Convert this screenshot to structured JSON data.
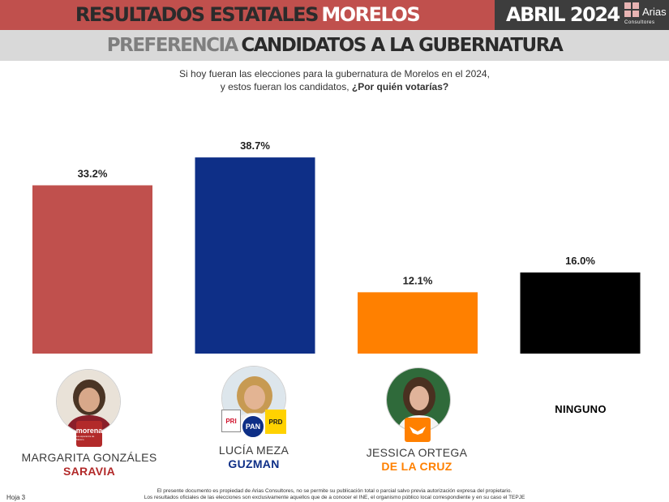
{
  "header": {
    "title_part1": "RESULTADOS ESTATALES",
    "title_part2": "MORELOS",
    "date": "ABRIL 2024",
    "logo": {
      "name": "Arias",
      "sub": "Consultores"
    },
    "subtitle_part1": "PREFERENCIA",
    "subtitle_part2": "CANDIDATOS A LA GUBERNATURA"
  },
  "question": {
    "line1": "Si hoy fueran las elecciones para la gubernatura de Morelos en el 2024,",
    "line2": "y estos fueran los candidatos,",
    "line2_bold": "¿Por quién votarías?"
  },
  "chart_data": {
    "type": "bar",
    "categories": [
      "MARGARITA GONZÁLES SARAVIA",
      "LUCÍA MEZA GUZMAN",
      "JESSICA ORTEGA DE LA CRUZ",
      "NINGUNO"
    ],
    "values": [
      33.2,
      38.7,
      12.1,
      16.0
    ],
    "value_labels": [
      "33.2%",
      "38.7%",
      "12.1%",
      "16.0%"
    ],
    "colors": [
      "#c0504d",
      "#0e2f87",
      "#ff8000",
      "#000000"
    ],
    "ylim": [
      0,
      40
    ],
    "grid": false,
    "legend": "none"
  },
  "candidates": [
    {
      "first": "MARGARITA GONZÁLES",
      "last": "SARAVIA",
      "last_color": "#b22a2a",
      "photo_icon": "candidate-portrait-icon",
      "parties": [
        "morena"
      ]
    },
    {
      "first": "LUCÍA MEZA",
      "last": "GUZMAN",
      "last_color": "#0e2f87",
      "photo_icon": "candidate-portrait-icon",
      "parties": [
        "PRI",
        "PAN",
        "PRD"
      ]
    },
    {
      "first": "JESSICA ORTEGA",
      "last": "DE LA CRUZ",
      "last_color": "#ff8000",
      "photo_icon": "candidate-portrait-icon",
      "parties": [
        "movimiento-ciudadano"
      ]
    },
    {
      "first": "NINGUNO",
      "last": "",
      "last_color": "#000000"
    }
  ],
  "parties": {
    "morena": {
      "label": "morena",
      "sub": "La esperanza de México",
      "color": "#b22a2a"
    },
    "pri": {
      "label": "PRI",
      "color": "#ffffff"
    },
    "pan": {
      "label": "PAN",
      "color": "#0e2f87"
    },
    "prd": {
      "label": "PRD",
      "color": "#ffd200"
    },
    "mc": {
      "label": "MOVIMIENTO CIUDADANO",
      "color": "#ff8000"
    }
  },
  "footer": {
    "page": "Hoja 3",
    "line1": "El presente documento es propiedad de Arias Consultores, no se permite su publicación total o parcial salvo previa autorización expresa del propietario.",
    "line2": "Los resultados oficiales de las elecciones son exclusivamente aquellos que de a conocer el INE, el organismo público local correspondiente  y en su caso el TEPJE"
  }
}
